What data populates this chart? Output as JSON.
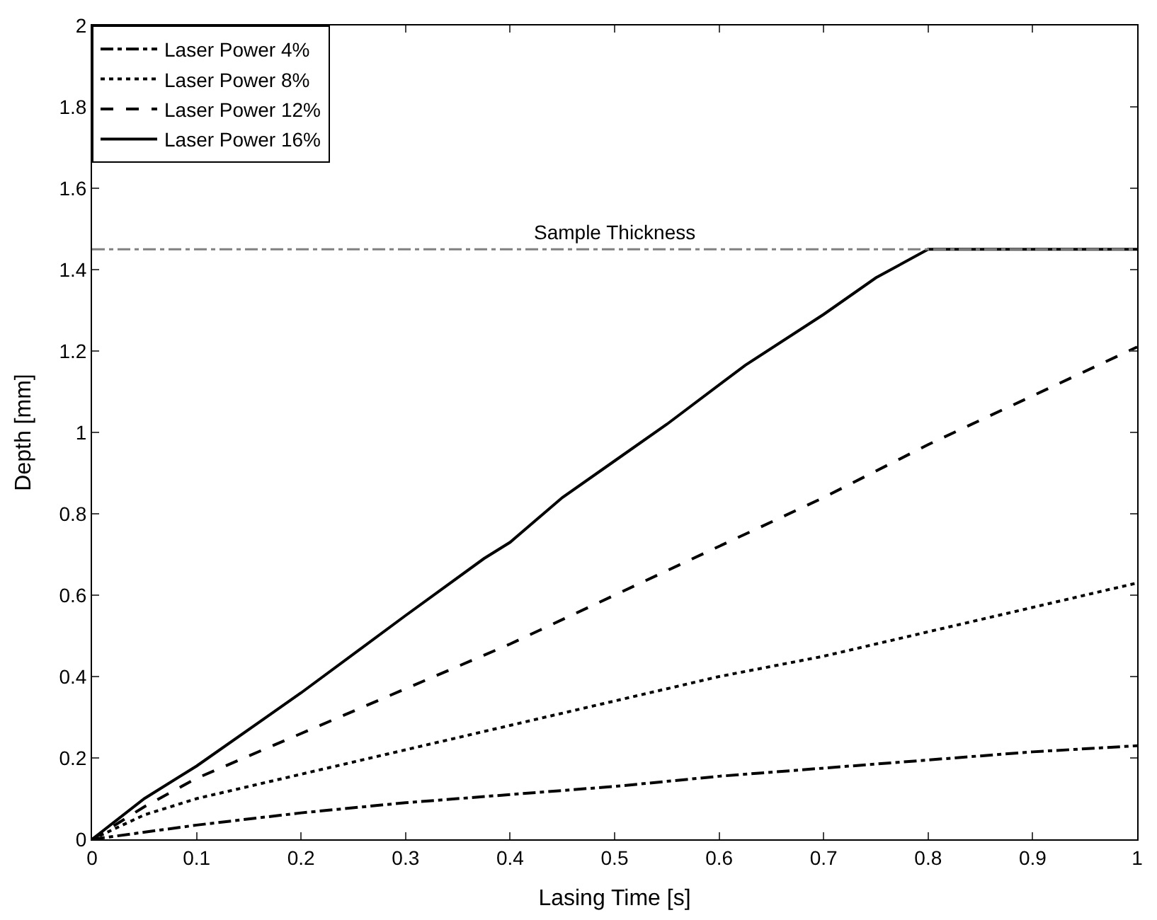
{
  "chart_data": {
    "type": "line",
    "xlabel": "Lasing Time [s]",
    "ylabel": "Depth [mm]",
    "xlim": [
      0,
      1
    ],
    "xticks": [
      0,
      0.1,
      0.2,
      0.3,
      0.4,
      0.5,
      0.6,
      0.7,
      0.8,
      0.9,
      1
    ],
    "ylim": [
      0,
      2
    ],
    "yticks": [
      0,
      0.2,
      0.4,
      0.6,
      0.8,
      1,
      1.2,
      1.4,
      1.6,
      1.8,
      2
    ],
    "legend": "top left",
    "marker": "none",
    "series": [
      {
        "name": "Laser Power 4%",
        "color": "#000000",
        "line_style": "dashdot",
        "x": [
          0,
          0.1,
          0.2,
          0.3,
          0.4,
          0.5,
          0.6,
          0.7,
          0.8,
          0.9,
          1
        ],
        "values": [
          0,
          0.035,
          0.065,
          0.09,
          0.11,
          0.13,
          0.155,
          0.175,
          0.195,
          0.215,
          0.23
        ]
      },
      {
        "name": "Laser Power 8%",
        "color": "#000000",
        "line_style": "dotted",
        "x": [
          0,
          0.05,
          0.1,
          0.2,
          0.3,
          0.4,
          0.5,
          0.6,
          0.7,
          0.8,
          0.9,
          1
        ],
        "values": [
          0,
          0.06,
          0.1,
          0.16,
          0.22,
          0.28,
          0.34,
          0.4,
          0.45,
          0.51,
          0.57,
          0.63
        ]
      },
      {
        "name": "Laser Power 12%",
        "color": "#000000",
        "line_style": "dashed",
        "x": [
          0,
          0.05,
          0.1,
          0.2,
          0.3,
          0.4,
          0.5,
          0.6,
          0.7,
          0.8,
          0.9,
          1
        ],
        "values": [
          0,
          0.08,
          0.15,
          0.26,
          0.37,
          0.48,
          0.6,
          0.72,
          0.84,
          0.97,
          1.09,
          1.21
        ]
      },
      {
        "name": "Laser Power 16%",
        "color": "#000000",
        "line_style": "solid",
        "x": [
          0,
          0.05,
          0.1,
          0.2,
          0.3,
          0.375,
          0.4,
          0.45,
          0.5,
          0.55,
          0.625,
          0.7,
          0.75,
          0.8,
          1
        ],
        "values": [
          0,
          0.1,
          0.18,
          0.36,
          0.55,
          0.69,
          0.73,
          0.84,
          0.93,
          1.02,
          1.165,
          1.29,
          1.38,
          1.45,
          1.45
        ]
      }
    ],
    "ref_lines": [
      {
        "axis": "y",
        "value": 1.45,
        "label": "Sample Thickness",
        "color": "#808080",
        "line_style": "dashdot"
      }
    ]
  }
}
